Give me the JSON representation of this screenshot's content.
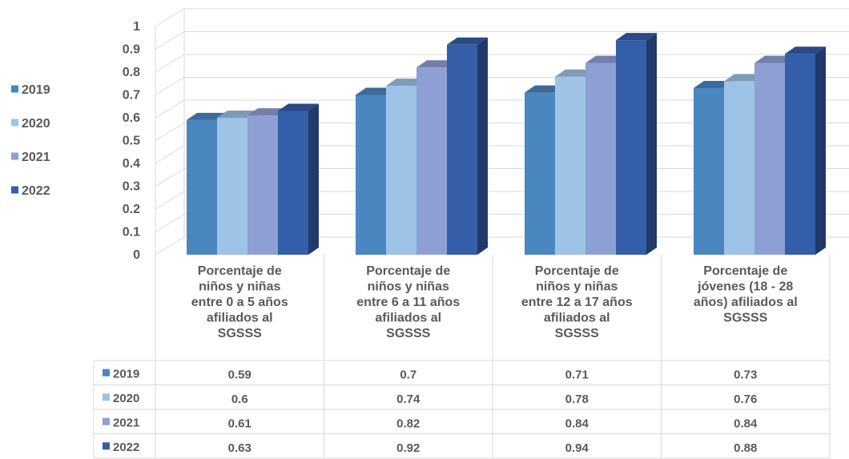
{
  "chart_data": {
    "type": "bar",
    "categories": [
      [
        "Porcentaje de",
        "niños  y niñas",
        "entre 0 a 5 años",
        "afiliados al",
        "SGSSS"
      ],
      [
        "Porcentaje de",
        "niños  y niñas",
        "entre 6 a 11 años",
        "afiliados al",
        "SGSSS"
      ],
      [
        "Porcentaje de",
        "niños  y niñas",
        "entre 12 a 17 años",
        "afiliados al",
        "SGSSS"
      ],
      [
        "Porcentaje de",
        "jóvenes (18 - 28",
        "años) afiliados al",
        "SGSSS"
      ]
    ],
    "series": [
      {
        "name": "2019",
        "color": "#4a86bf",
        "values": [
          0.59,
          0.7,
          0.71,
          0.73
        ],
        "labels": [
          "0.59",
          "0.7",
          "0.71",
          "0.73"
        ]
      },
      {
        "name": "2020",
        "color": "#9dc3e6",
        "values": [
          0.6,
          0.74,
          0.78,
          0.76
        ],
        "labels": [
          "0.6",
          "0.74",
          "0.78",
          "0.76"
        ]
      },
      {
        "name": "2021",
        "color": "#8e9fd4",
        "values": [
          0.61,
          0.82,
          0.84,
          0.84
        ],
        "labels": [
          "0.61",
          "0.82",
          "0.84",
          "0.84"
        ]
      },
      {
        "name": "2022",
        "color": "#355ea9",
        "values": [
          0.63,
          0.92,
          0.94,
          0.88
        ],
        "labels": [
          "0.63",
          "0.92",
          "0.94",
          "0.88"
        ]
      }
    ],
    "yticks": [
      "0",
      "0.1",
      "0.2",
      "0.3",
      "0.4",
      "0.5",
      "0.6",
      "0.7",
      "0.8",
      "0.9",
      "1"
    ],
    "ylim": [
      0,
      1
    ],
    "grid": true,
    "legend_position": "left",
    "data_table": true,
    "style": "3d-clustered-column"
  }
}
